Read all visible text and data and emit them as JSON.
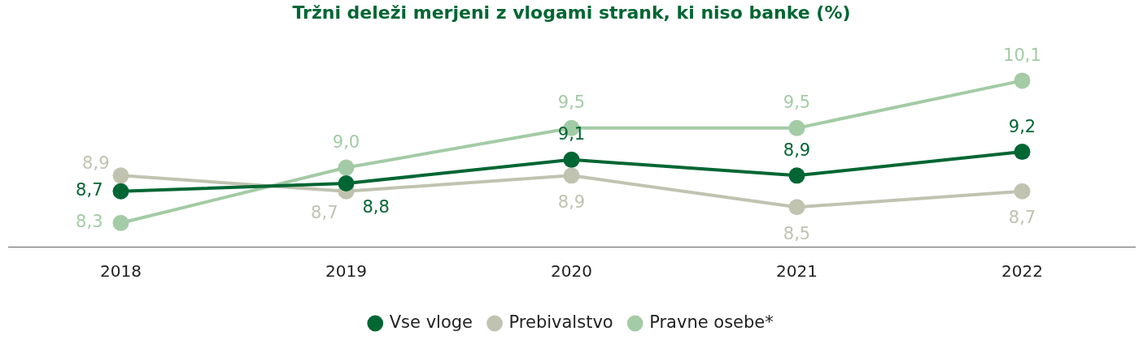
{
  "chart_data": {
    "type": "line",
    "title": "Tržni deleži merjeni z vlogami strank, ki niso banke (%)",
    "categories": [
      "2018",
      "2019",
      "2020",
      "2021",
      "2022"
    ],
    "legend": "bottom",
    "marker": "circle",
    "grid": false,
    "tick_labels": "x",
    "series": [
      {
        "name": "Vse vloge",
        "color": "#006633",
        "values": [
          8.7,
          8.8,
          9.1,
          8.9,
          9.2
        ],
        "value_labels": [
          "8,7",
          "8,8",
          "9,1",
          "8,9",
          "9,2"
        ]
      },
      {
        "name": "Prebivalstvo",
        "color": "#c0c3b0",
        "values": [
          8.9,
          8.7,
          8.9,
          8.5,
          8.7
        ],
        "value_labels": [
          "8,9",
          "8,7",
          "8,9",
          "8,5",
          "8,7"
        ]
      },
      {
        "name": "Pravne osebe*",
        "color": "#a3cba5",
        "values": [
          8.3,
          9.0,
          9.5,
          9.5,
          10.1
        ],
        "value_labels": [
          "8,3",
          "9,0",
          "9,5",
          "9,5",
          "10,1"
        ]
      }
    ]
  }
}
